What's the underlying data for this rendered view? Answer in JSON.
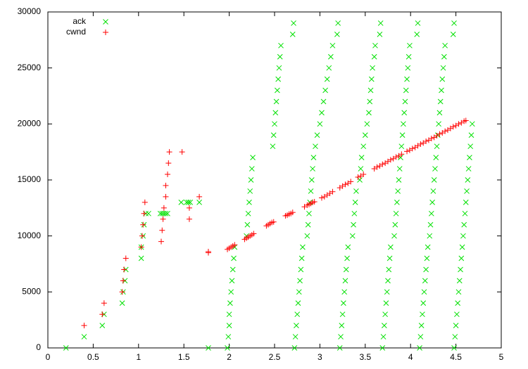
{
  "chart_data": {
    "type": "scatter",
    "xlim": [
      0,
      5
    ],
    "ylim": [
      0,
      30000
    ],
    "xticks": [
      0,
      0.5,
      1,
      1.5,
      2,
      2.5,
      3,
      3.5,
      4,
      4.5,
      5
    ],
    "yticks": [
      0,
      5000,
      10000,
      15000,
      20000,
      25000,
      30000
    ],
    "legend": "top-left",
    "series": [
      {
        "name": "ack",
        "color": "#00e000",
        "marker": "x",
        "x": [
          0.2,
          0.4,
          0.6,
          0.62,
          0.82,
          0.83,
          0.85,
          0.86,
          1.03,
          1.03,
          1.05,
          1.06,
          1.08,
          1.11,
          1.24,
          1.26,
          1.28,
          1.3,
          1.32,
          1.47,
          1.53,
          1.55,
          1.57,
          1.67,
          1.77,
          1.98,
          1.99,
          2.0,
          2.0,
          2.01,
          2.02,
          2.03,
          2.04,
          2.05,
          2.06,
          2.19,
          2.2,
          2.21,
          2.22,
          2.23,
          2.24,
          2.25,
          2.26,
          2.48,
          2.49,
          2.5,
          2.51,
          2.52,
          2.53,
          2.54,
          2.55,
          2.56,
          2.57,
          2.7,
          2.71,
          2.72,
          2.73,
          2.74,
          2.75,
          2.76,
          2.77,
          2.78,
          2.79,
          2.8,
          2.81,
          2.86,
          2.87,
          2.88,
          2.89,
          2.9,
          2.91,
          2.92,
          2.93,
          2.95,
          2.97,
          3.0,
          3.02,
          3.04,
          3.06,
          3.08,
          3.1,
          3.12,
          3.14,
          3.19,
          3.2,
          3.22,
          3.23,
          3.24,
          3.25,
          3.26,
          3.27,
          3.28,
          3.29,
          3.3,
          3.31,
          3.36,
          3.37,
          3.38,
          3.39,
          3.4,
          3.44,
          3.45,
          3.46,
          3.48,
          3.5,
          3.52,
          3.54,
          3.55,
          3.56,
          3.57,
          3.58,
          3.6,
          3.61,
          3.66,
          3.67,
          3.69,
          3.7,
          3.71,
          3.72,
          3.73,
          3.74,
          3.75,
          3.76,
          3.77,
          3.78,
          3.82,
          3.83,
          3.84,
          3.85,
          3.86,
          3.87,
          3.88,
          3.89,
          3.9,
          3.91,
          3.92,
          3.93,
          3.94,
          3.95,
          3.96,
          3.97,
          3.98,
          3.99,
          4.07,
          4.08,
          4.1,
          4.11,
          4.12,
          4.13,
          4.14,
          4.15,
          4.16,
          4.17,
          4.18,
          4.19,
          4.21,
          4.22,
          4.23,
          4.24,
          4.25,
          4.26,
          4.27,
          4.28,
          4.29,
          4.3,
          4.31,
          4.32,
          4.33,
          4.34,
          4.35,
          4.36,
          4.37,
          4.38,
          4.47,
          4.48,
          4.48,
          4.49,
          4.5,
          4.51,
          4.52,
          4.53,
          4.54,
          4.55,
          4.56,
          4.57,
          4.58,
          4.59,
          4.6,
          4.61,
          4.62,
          4.63,
          4.64,
          4.65,
          4.66,
          4.67,
          4.68
        ],
        "values": [
          0,
          1000,
          2000,
          3000,
          4000,
          5000,
          6000,
          7000,
          8000,
          9000,
          10000,
          11000,
          12000,
          12000,
          12000,
          12000,
          12000,
          12000,
          12000,
          13000,
          13000,
          13000,
          13000,
          13000,
          0,
          0,
          1000,
          2000,
          3000,
          4000,
          5000,
          6000,
          7000,
          8000,
          9000,
          10000,
          11000,
          12000,
          13000,
          14000,
          15000,
          16000,
          17000,
          18000,
          19000,
          20000,
          21000,
          22000,
          23000,
          24000,
          25000,
          26000,
          27000,
          28000,
          29000,
          0,
          1000,
          2000,
          3000,
          4000,
          5000,
          6000,
          7000,
          8000,
          9000,
          10000,
          11000,
          12000,
          13000,
          14000,
          15000,
          16000,
          17000,
          18000,
          19000,
          20000,
          21000,
          22000,
          23000,
          24000,
          25000,
          26000,
          27000,
          28000,
          29000,
          0,
          1000,
          2000,
          3000,
          4000,
          5000,
          6000,
          7000,
          8000,
          9000,
          10000,
          11000,
          12000,
          13000,
          14000,
          15000,
          16000,
          17000,
          18000,
          19000,
          20000,
          21000,
          22000,
          23000,
          24000,
          25000,
          26000,
          27000,
          28000,
          29000,
          0,
          1000,
          2000,
          3000,
          4000,
          5000,
          6000,
          7000,
          8000,
          9000,
          10000,
          11000,
          12000,
          13000,
          14000,
          15000,
          16000,
          17000,
          18000,
          19000,
          20000,
          21000,
          22000,
          23000,
          24000,
          25000,
          26000,
          27000,
          28000,
          29000,
          0,
          1000,
          2000,
          3000,
          4000,
          5000,
          6000,
          7000,
          8000,
          9000,
          10000,
          11000,
          12000,
          13000,
          14000,
          15000,
          16000,
          17000,
          18000,
          19000,
          20000,
          21000,
          22000,
          23000,
          24000,
          25000,
          26000,
          27000,
          28000,
          29000,
          0,
          1000,
          2000,
          3000,
          4000,
          5000,
          6000,
          7000,
          8000,
          9000,
          10000,
          11000,
          12000,
          13000,
          14000,
          15000,
          16000,
          17000,
          18000,
          19000,
          20000
        ]
      },
      {
        "name": "cwnd",
        "color": "#ff0000",
        "marker": "plus",
        "x": [
          0.4,
          0.6,
          0.62,
          0.82,
          0.83,
          0.84,
          0.86,
          1.03,
          1.04,
          1.05,
          1.06,
          1.07,
          1.25,
          1.26,
          1.27,
          1.28,
          1.3,
          1.3,
          1.32,
          1.33,
          1.34,
          1.48,
          1.56,
          1.56,
          1.67,
          1.77,
          1.77,
          1.98,
          2.0,
          2.02,
          2.04,
          2.06,
          2.17,
          2.19,
          2.21,
          2.23,
          2.25,
          2.27,
          2.41,
          2.43,
          2.45,
          2.47,
          2.49,
          2.62,
          2.64,
          2.66,
          2.68,
          2.7,
          2.83,
          2.86,
          2.88,
          2.9,
          2.92,
          2.94,
          3.02,
          3.05,
          3.08,
          3.11,
          3.14,
          3.22,
          3.25,
          3.28,
          3.31,
          3.34,
          3.42,
          3.45,
          3.48,
          3.6,
          3.63,
          3.66,
          3.69,
          3.72,
          3.75,
          3.78,
          3.81,
          3.84,
          3.87,
          3.9,
          3.96,
          3.99,
          4.02,
          4.05,
          4.08,
          4.11,
          4.14,
          4.17,
          4.2,
          4.23,
          4.26,
          4.29,
          4.32,
          4.35,
          4.38,
          4.41,
          4.44,
          4.47,
          4.5,
          4.53,
          4.56,
          4.59,
          4.61
        ],
        "values": [
          2000,
          3000,
          4000,
          5000,
          6000,
          7000,
          8000,
          9000,
          10000,
          11000,
          12000,
          13000,
          9500,
          10500,
          11500,
          12500,
          13500,
          14500,
          15500,
          16500,
          17500,
          17500,
          12500,
          11500,
          13500,
          8600,
          8500,
          8800,
          8900,
          9000,
          9100,
          9200,
          9700,
          9800,
          9900,
          10000,
          10100,
          10200,
          10900,
          11000,
          11100,
          11200,
          11250,
          11800,
          11850,
          11950,
          12000,
          12100,
          12600,
          12750,
          12800,
          12900,
          13000,
          13050,
          13400,
          13500,
          13650,
          13800,
          13950,
          14300,
          14450,
          14600,
          14700,
          14850,
          15250,
          15350,
          15500,
          16000,
          16150,
          16250,
          16400,
          16500,
          16650,
          16800,
          16900,
          17050,
          17150,
          17300,
          17550,
          17650,
          17800,
          17900,
          18050,
          18200,
          18300,
          18450,
          18550,
          18700,
          18800,
          18950,
          19100,
          19200,
          19350,
          19450,
          19600,
          19750,
          19850,
          20000,
          20100,
          20250,
          20300
        ]
      }
    ]
  }
}
